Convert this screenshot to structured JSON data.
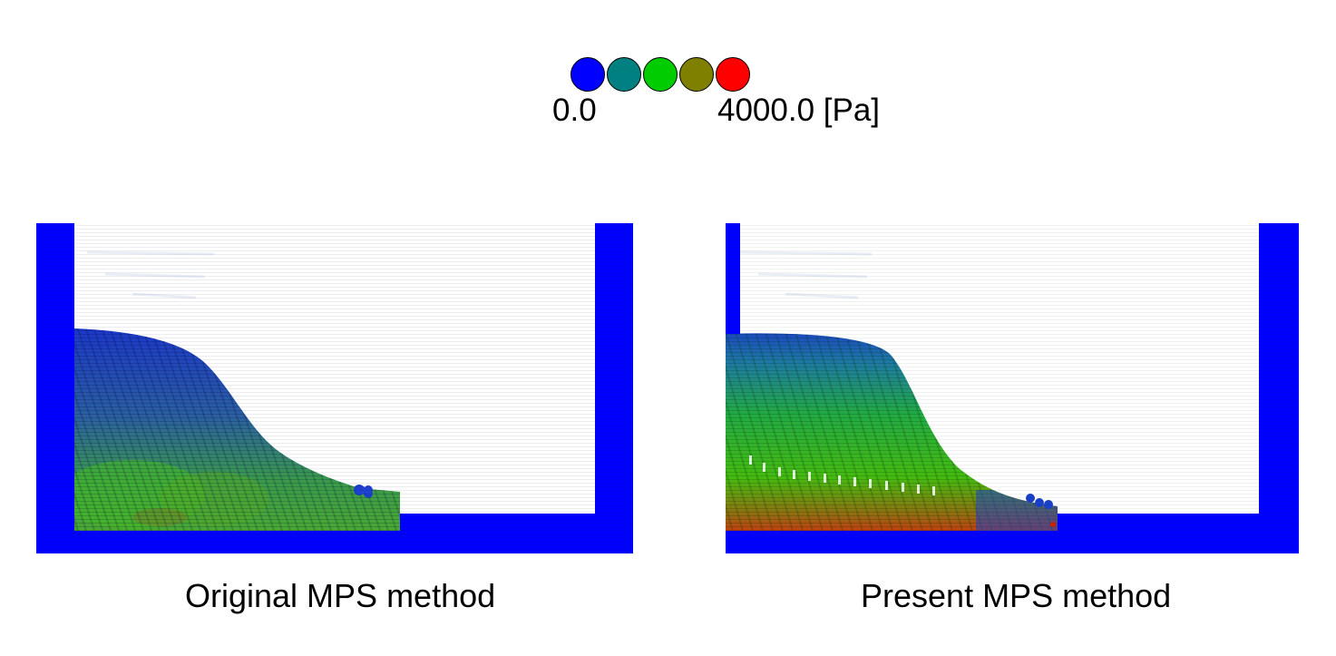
{
  "colorbar": {
    "colors": [
      "#0000ff",
      "#008080",
      "#00cc00",
      "#808000",
      "#ff0000"
    ],
    "min_label": "0.0",
    "max_label": "4000.0 [Pa]"
  },
  "panels": [
    {
      "caption": "Original MPS method"
    },
    {
      "caption": "Present MPS method"
    }
  ]
}
